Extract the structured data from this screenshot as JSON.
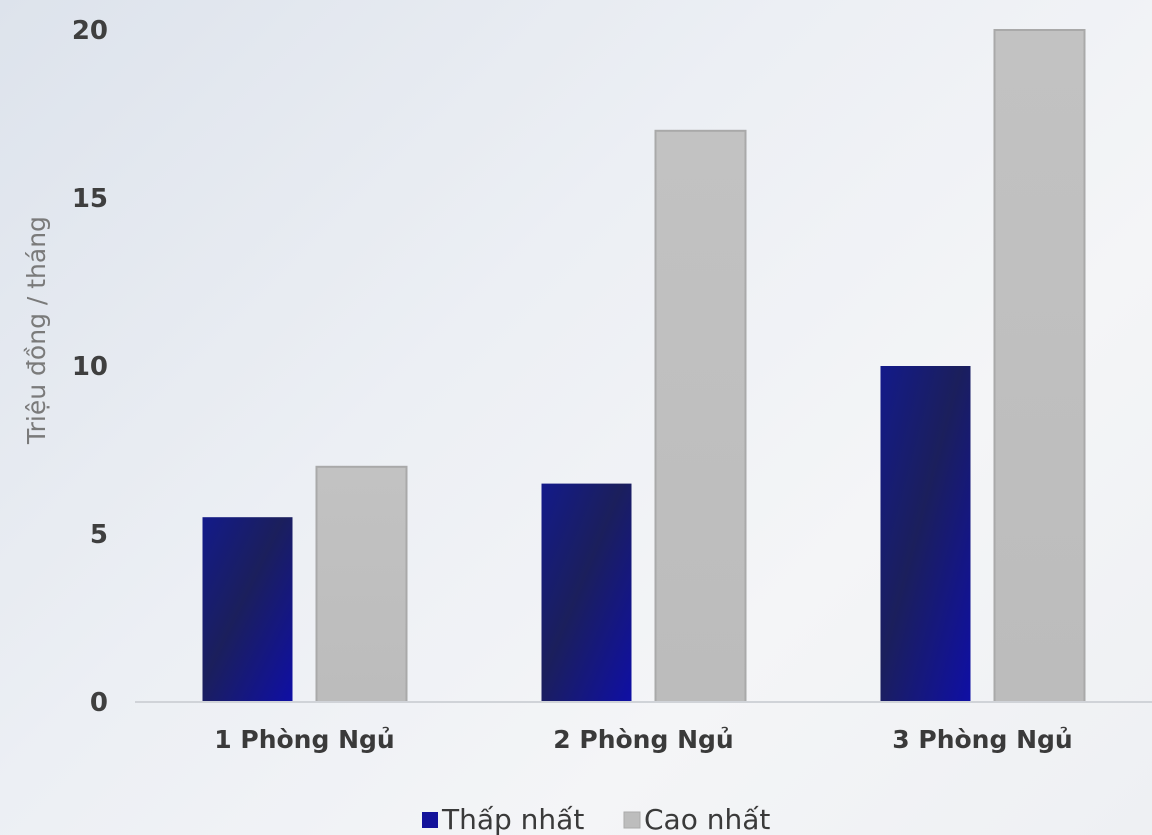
{
  "chart_data": {
    "type": "bar",
    "categories": [
      "1 Phòng Ngủ",
      "2 Phòng Ngủ",
      "3 Phòng Ngủ"
    ],
    "series": [
      {
        "name": "Thấp nhất",
        "values": [
          5.5,
          6.5,
          10
        ],
        "color": "#13139a"
      },
      {
        "name": "Cao nhất",
        "values": [
          7,
          17,
          20
        ],
        "color": "#bdbdbd"
      }
    ],
    "ylabel": "Triệu đồng / tháng",
    "ylim": [
      0,
      20
    ],
    "yticks": [
      "0",
      "5",
      "10",
      "15",
      "20"
    ],
    "grid": false,
    "legend_position": "bottom"
  }
}
